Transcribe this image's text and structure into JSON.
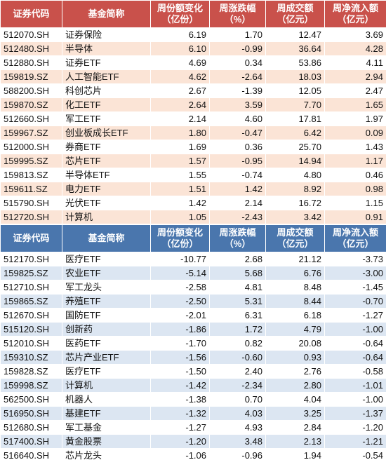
{
  "headers": {
    "code": "证券代码",
    "name": "基金简称",
    "share_change": [
      "周份额变化",
      "（亿份）"
    ],
    "pct_change": [
      "周涨跌幅",
      "（%）"
    ],
    "turnover": [
      "周成交额",
      "（亿元）"
    ],
    "net_inflow": [
      "周净流入额",
      "（亿元）"
    ]
  },
  "colors": {
    "top_header": "#c9514b",
    "top_stripe": "#fbe4d6",
    "bottom_header": "#4a76ad",
    "bottom_stripe": "#dce6f2"
  },
  "top_rows": [
    {
      "code": "512070.SH",
      "name": "证券保险",
      "share_change": "6.19",
      "pct_change": "1.70",
      "turnover": "12.47",
      "net_inflow": "3.69"
    },
    {
      "code": "512480.SH",
      "name": "半导体",
      "share_change": "6.10",
      "pct_change": "-0.99",
      "turnover": "36.64",
      "net_inflow": "4.28"
    },
    {
      "code": "512880.SH",
      "name": "证券ETF",
      "share_change": "4.69",
      "pct_change": "0.34",
      "turnover": "53.86",
      "net_inflow": "4.11"
    },
    {
      "code": "159819.SZ",
      "name": "人工智能ETF",
      "share_change": "4.62",
      "pct_change": "-2.64",
      "turnover": "18.03",
      "net_inflow": "2.94"
    },
    {
      "code": "588200.SH",
      "name": "科创芯片",
      "share_change": "2.67",
      "pct_change": "-1.39",
      "turnover": "12.05",
      "net_inflow": "2.47"
    },
    {
      "code": "159870.SZ",
      "name": "化工ETF",
      "share_change": "2.64",
      "pct_change": "3.59",
      "turnover": "7.70",
      "net_inflow": "1.65"
    },
    {
      "code": "512660.SH",
      "name": "军工ETF",
      "share_change": "2.14",
      "pct_change": "4.60",
      "turnover": "17.81",
      "net_inflow": "1.97"
    },
    {
      "code": "159967.SZ",
      "name": "创业板成长ETF",
      "share_change": "1.80",
      "pct_change": "-0.47",
      "turnover": "6.42",
      "net_inflow": "0.09"
    },
    {
      "code": "512000.SH",
      "name": "券商ETF",
      "share_change": "1.69",
      "pct_change": "0.36",
      "turnover": "25.70",
      "net_inflow": "1.43"
    },
    {
      "code": "159995.SZ",
      "name": "芯片ETF",
      "share_change": "1.57",
      "pct_change": "-0.95",
      "turnover": "14.94",
      "net_inflow": "1.17"
    },
    {
      "code": "159813.SZ",
      "name": "半导体ETF",
      "share_change": "1.55",
      "pct_change": "-0.74",
      "turnover": "4.80",
      "net_inflow": "0.46"
    },
    {
      "code": "159611.SZ",
      "name": "电力ETF",
      "share_change": "1.51",
      "pct_change": "1.42",
      "turnover": "8.92",
      "net_inflow": "0.98"
    },
    {
      "code": "515790.SH",
      "name": "光伏ETF",
      "share_change": "1.42",
      "pct_change": "2.14",
      "turnover": "16.72",
      "net_inflow": "1.15"
    },
    {
      "code": "512720.SH",
      "name": "计算机",
      "share_change": "1.05",
      "pct_change": "-2.43",
      "turnover": "3.42",
      "net_inflow": "0.91"
    }
  ],
  "bottom_rows": [
    {
      "code": "512170.SH",
      "name": "医疗ETF",
      "share_change": "-10.77",
      "pct_change": "2.68",
      "turnover": "21.12",
      "net_inflow": "-3.73"
    },
    {
      "code": "159825.SZ",
      "name": "农业ETF",
      "share_change": "-5.14",
      "pct_change": "5.68",
      "turnover": "6.76",
      "net_inflow": "-3.00"
    },
    {
      "code": "512710.SH",
      "name": "军工龙头",
      "share_change": "-2.58",
      "pct_change": "4.81",
      "turnover": "8.48",
      "net_inflow": "-1.45"
    },
    {
      "code": "159865.SZ",
      "name": "养殖ETF",
      "share_change": "-2.50",
      "pct_change": "5.31",
      "turnover": "8.44",
      "net_inflow": "-0.70"
    },
    {
      "code": "512670.SH",
      "name": "国防ETF",
      "share_change": "-2.01",
      "pct_change": "6.31",
      "turnover": "6.18",
      "net_inflow": "-1.27"
    },
    {
      "code": "515120.SH",
      "name": "创新药",
      "share_change": "-1.86",
      "pct_change": "1.72",
      "turnover": "4.79",
      "net_inflow": "-1.00"
    },
    {
      "code": "512010.SH",
      "name": "医药ETF",
      "share_change": "-1.70",
      "pct_change": "0.82",
      "turnover": "20.08",
      "net_inflow": "-0.64"
    },
    {
      "code": "159310.SZ",
      "name": "芯片产业ETF",
      "share_change": "-1.56",
      "pct_change": "-0.60",
      "turnover": "0.93",
      "net_inflow": "-0.64"
    },
    {
      "code": "159828.SZ",
      "name": "医疗ETF",
      "share_change": "-1.50",
      "pct_change": "2.40",
      "turnover": "2.76",
      "net_inflow": "-0.58"
    },
    {
      "code": "159998.SZ",
      "name": "计算机",
      "share_change": "-1.42",
      "pct_change": "-2.34",
      "turnover": "2.80",
      "net_inflow": "-1.01"
    },
    {
      "code": "562500.SH",
      "name": "机器人",
      "share_change": "-1.38",
      "pct_change": "0.70",
      "turnover": "4.04",
      "net_inflow": "-1.00"
    },
    {
      "code": "516950.SH",
      "name": "基建ETF",
      "share_change": "-1.32",
      "pct_change": "4.03",
      "turnover": "3.25",
      "net_inflow": "-1.37"
    },
    {
      "code": "512680.SH",
      "name": "军工基金",
      "share_change": "-1.27",
      "pct_change": "4.93",
      "turnover": "2.84",
      "net_inflow": "-1.20"
    },
    {
      "code": "517400.SH",
      "name": "黄金股票",
      "share_change": "-1.20",
      "pct_change": "3.48",
      "turnover": "2.13",
      "net_inflow": "-1.21"
    },
    {
      "code": "516640.SH",
      "name": "芯片龙头",
      "share_change": "-1.06",
      "pct_change": "-0.96",
      "turnover": "1.94",
      "net_inflow": "-0.54"
    }
  ]
}
